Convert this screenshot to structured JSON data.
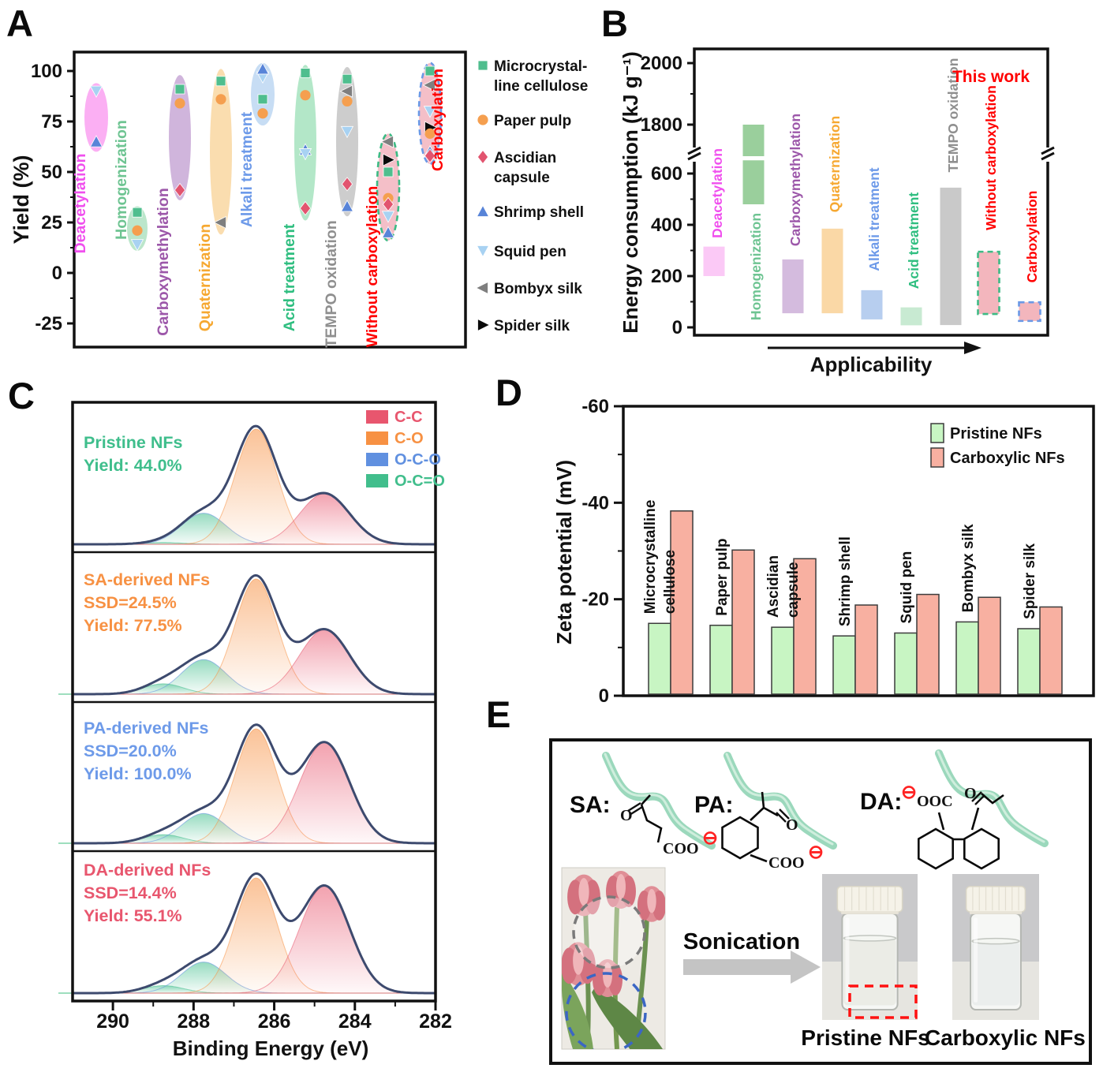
{
  "panels": {
    "A": {
      "letter": "A"
    },
    "B": {
      "letter": "B"
    },
    "C": {
      "letter": "C"
    },
    "D": {
      "letter": "D"
    },
    "E": {
      "letter": "E",
      "structures": [
        {
          "name": "SA",
          "label": "SA:",
          "carbonyl": "O",
          "carboxylate": "COO",
          "charge": "⊖"
        },
        {
          "name": "PA",
          "label": "PA:",
          "carbonyl": "O",
          "carboxylate": "COO",
          "charge": "⊖"
        },
        {
          "name": "DA",
          "label": "DA:",
          "carbonyl": "O",
          "carboxylate": "OOC",
          "charge": "⊖"
        }
      ],
      "sonication_label": "Sonication",
      "vials": [
        {
          "label": "Pristine NFs",
          "cloudy": true,
          "marker": "red-dashed-box"
        },
        {
          "label": "Carboxylic NFs",
          "cloudy": false,
          "marker": null
        }
      ]
    }
  },
  "samples": [
    {
      "name": "Microcrystalline cellulose",
      "legend_lines": [
        "Microcrystal-",
        "line cellulose"
      ],
      "shape": "square",
      "color": "#4FBE8E"
    },
    {
      "name": "Paper pulp",
      "legend_lines": [
        "Paper pulp"
      ],
      "shape": "circle",
      "color": "#F59F4F"
    },
    {
      "name": "Ascidian capsule",
      "legend_lines": [
        "Ascidian",
        "capsule"
      ],
      "shape": "diamond",
      "color": "#E2546F"
    },
    {
      "name": "Shrimp shell",
      "legend_lines": [
        "Shrimp shell"
      ],
      "shape": "triangle-up",
      "color": "#5884D8"
    },
    {
      "name": "Squid pen",
      "legend_lines": [
        "Squid pen"
      ],
      "shape": "triangle-down",
      "color": "#A8D2F2"
    },
    {
      "name": "Bombyx silk",
      "legend_lines": [
        "Bombyx silk"
      ],
      "shape": "triangle-left",
      "color": "#7F7F7F"
    },
    {
      "name": "Spider silk",
      "legend_lines": [
        "Spider silk"
      ],
      "shape": "triangle-right",
      "color": "#0A0A0A"
    }
  ],
  "chart_data": [
    {
      "id": "A",
      "type": "scatter",
      "ylabel": "Yield (%)",
      "ylim": [
        -40,
        110
      ],
      "yticks": [
        100,
        75,
        50,
        25,
        0,
        -25
      ],
      "legend_position": "right",
      "categories": [
        {
          "label": "Deacetylation",
          "text_color": "#F050EE",
          "fill": "#FAA4F1",
          "dash_border": null,
          "range": [
            60,
            94
          ],
          "points": [
            {
              "sample": "Squid pen",
              "value": 90
            },
            {
              "sample": "Shrimp shell",
              "value": 65
            }
          ]
        },
        {
          "label": "Homogenization",
          "text_color": "#6EC492",
          "fill": "#B2E2C4",
          "dash_border": null,
          "range": [
            11,
            33
          ],
          "points": [
            {
              "sample": "Microcrystalline cellulose",
              "value": 30
            },
            {
              "sample": "Paper pulp",
              "value": 21
            },
            {
              "sample": "Squid pen",
              "value": 14
            }
          ]
        },
        {
          "label": "Carboxymethylation",
          "text_color": "#9C57A9",
          "fill": "#C9ABD7",
          "dash_border": null,
          "range": [
            36,
            98
          ],
          "points": [
            {
              "sample": "Microcrystalline cellulose",
              "value": 91
            },
            {
              "sample": "Paper pulp",
              "value": 84
            },
            {
              "sample": "Ascidian capsule",
              "value": 41
            }
          ]
        },
        {
          "label": "Quaternization",
          "text_color": "#F6A831",
          "fill": "#F9D8A4",
          "dash_border": null,
          "range": [
            19,
            101
          ],
          "points": [
            {
              "sample": "Microcrystalline cellulose",
              "value": 95
            },
            {
              "sample": "Paper pulp",
              "value": 86
            },
            {
              "sample": "Bombyx silk",
              "value": 25
            }
          ]
        },
        {
          "label": "Alkali treatment",
          "text_color": "#6D9AE9",
          "fill": "#BFD8F3",
          "dash_border": null,
          "range": [
            73,
            104
          ],
          "points": [
            {
              "sample": "Squid pen",
              "value": 97
            },
            {
              "sample": "Shrimp shell",
              "value": 101
            },
            {
              "sample": "Microcrystalline cellulose",
              "value": 86
            },
            {
              "sample": "Paper pulp",
              "value": 79
            }
          ]
        },
        {
          "label": "Acid treatment",
          "text_color": "#2FBE80",
          "fill": "#A8E4C0",
          "dash_border": null,
          "range": [
            26,
            103
          ],
          "points": [
            {
              "sample": "Microcrystalline cellulose",
              "value": 99
            },
            {
              "sample": "Paper pulp",
              "value": 88
            },
            {
              "sample": "Shrimp shell",
              "value": 61
            },
            {
              "sample": "Squid pen",
              "value": 59
            },
            {
              "sample": "Ascidian capsule",
              "value": 32
            }
          ]
        },
        {
          "label": "TEMPO oxidation",
          "text_color": "#8F8F8F",
          "fill": "#C6C6C6",
          "dash_border": null,
          "range": [
            28,
            102
          ],
          "points": [
            {
              "sample": "Microcrystalline cellulose",
              "value": 96
            },
            {
              "sample": "Bombyx silk",
              "value": 90
            },
            {
              "sample": "Paper pulp",
              "value": 85
            },
            {
              "sample": "Squid pen",
              "value": 70
            },
            {
              "sample": "Ascidian capsule",
              "value": 44
            },
            {
              "sample": "Shrimp shell",
              "value": 33
            }
          ]
        },
        {
          "label": "Without carboxylation",
          "text_color": "#FF0000",
          "fill": "#F3B6C0",
          "dash_border": "#3DBB85",
          "range": [
            16,
            69
          ],
          "points": [
            {
              "sample": "Bombyx silk",
              "value": 65
            },
            {
              "sample": "Spider silk",
              "value": 56
            },
            {
              "sample": "Microcrystalline cellulose",
              "value": 50
            },
            {
              "sample": "Paper pulp",
              "value": 37
            },
            {
              "sample": "Ascidian capsule",
              "value": 34
            },
            {
              "sample": "Squid pen",
              "value": 28
            },
            {
              "sample": "Shrimp shell",
              "value": 20
            }
          ]
        },
        {
          "label": "Carboxylation",
          "text_color": "#FF0000",
          "fill": "#F3B6C0",
          "dash_border": "#6A99E6",
          "range": [
            54,
            104
          ],
          "points": [
            {
              "sample": "Microcrystalline cellulose",
              "value": 100
            },
            {
              "sample": "Bombyx silk",
              "value": 93
            },
            {
              "sample": "Squid pen",
              "value": 80
            },
            {
              "sample": "Spider silk",
              "value": 72
            },
            {
              "sample": "Paper pulp",
              "value": 69
            },
            {
              "sample": "Shrimp shell",
              "value": 60
            },
            {
              "sample": "Ascidian capsule",
              "value": 58
            }
          ]
        }
      ]
    },
    {
      "id": "B",
      "type": "bar",
      "ylabel": "Energy consumption (kJ g⁻¹)",
      "axis_break": {
        "lower_max": 650,
        "upper_min": 1700
      },
      "yticks_lower": [
        0,
        200,
        400,
        600
      ],
      "yticks_upper": [
        1800,
        2000
      ],
      "annotation": {
        "text": "This work",
        "color": "#FF0000"
      },
      "x_arrow_label": "Applicability",
      "bars": [
        {
          "label": "Deacetylation",
          "range": [
            200,
            315
          ],
          "fill": "#FBC9F6",
          "text_color": "#F050EE",
          "dash_border": null
        },
        {
          "label": "Homogenization",
          "range": [
            480,
            1800
          ],
          "fill": "#9ACF9C",
          "text_color": "#6EC492",
          "dash_border": null
        },
        {
          "label": "Carboxymethylation",
          "range": [
            55,
            265
          ],
          "fill": "#D4BBDE",
          "text_color": "#9C57A9",
          "dash_border": null
        },
        {
          "label": "Quaternization",
          "range": [
            55,
            385
          ],
          "fill": "#FAD8A6",
          "text_color": "#F6A831",
          "dash_border": null
        },
        {
          "label": "Alkali treatment",
          "range": [
            31,
            145
          ],
          "fill": "#B7CEEF",
          "text_color": "#6D9AE9",
          "dash_border": null
        },
        {
          "label": "Acid treatment",
          "range": [
            8,
            78
          ],
          "fill": "#C8EAD2",
          "text_color": "#2FBE80",
          "dash_border": null
        },
        {
          "label": "TEMPO oxidation",
          "range": [
            9,
            545
          ],
          "fill": "#C9C9C9",
          "text_color": "#8F8F8F",
          "dash_border": null
        },
        {
          "label": "Without carboxylation",
          "range": [
            52,
            295
          ],
          "fill": "#F3B6BD",
          "text_color": "#FF0000",
          "dash_border": "#3DBB85"
        },
        {
          "label": "Carboxylation",
          "range": [
            25,
            98
          ],
          "fill": "#F3B6BD",
          "text_color": "#FF0000",
          "dash_border": "#6A99E6"
        }
      ]
    },
    {
      "id": "C",
      "type": "area",
      "xlabel": "Binding Energy (eV)",
      "xlim": [
        291,
        282
      ],
      "xticks": [
        290,
        288,
        286,
        284,
        282
      ],
      "components": [
        {
          "key": "O-C=O",
          "color": "#41BE8C",
          "center": 288.75,
          "sigma": 0.5
        },
        {
          "key": "O-C-O",
          "color": "#6090E0",
          "center": 287.75,
          "sigma": 0.55
        },
        {
          "key": "C-O",
          "color": "#F79143",
          "center": 286.45,
          "sigma": 0.52
        },
        {
          "key": "C-C",
          "color": "#E8566E",
          "center": 284.75,
          "sigma": 0.62
        }
      ],
      "legend_order": [
        "C-C",
        "C-O",
        "O-C-O",
        "O-C=O"
      ],
      "envelope_color": "#3D4A6E",
      "spectra": [
        {
          "name": "Pristine NFs",
          "text_color": "#3FBE8C",
          "lines": [
            "Pristine NFs",
            "Yield: 44.0%"
          ],
          "amps": {
            "O-C=O": 0.015,
            "O-C-O": 0.27,
            "C-O": 1.0,
            "C-C": 0.44
          }
        },
        {
          "name": "SA-derived NFs",
          "text_color": "#F79143",
          "lines": [
            "SA-derived NFs",
            "SSD=24.5%",
            "Yield: 77.5%"
          ],
          "amps": {
            "O-C=O": 0.09,
            "O-C-O": 0.3,
            "C-O": 1.0,
            "C-C": 0.56
          }
        },
        {
          "name": "PA-derived NFs",
          "text_color": "#6D9AE9",
          "lines": [
            "PA-derived NFs",
            "SSD=20.0%",
            "Yield: 100.0%"
          ],
          "amps": {
            "O-C=O": 0.075,
            "O-C-O": 0.26,
            "C-O": 1.0,
            "C-C": 0.88
          }
        },
        {
          "name": "DA-derived NFs",
          "text_color": "#E8566E",
          "lines": [
            "DA-derived NFs",
            "SSD=14.4%",
            "Yield: 55.1%"
          ],
          "amps": {
            "O-C=O": 0.065,
            "O-C-O": 0.27,
            "C-O": 1.0,
            "C-C": 0.93
          }
        }
      ]
    },
    {
      "id": "D",
      "type": "bar",
      "ylabel": "Zeta potential (mV)",
      "ylim": [
        0,
        -60
      ],
      "yticks": [
        0,
        -20,
        -40,
        -60
      ],
      "series": [
        {
          "name": "Pristine NFs",
          "color": "#C8F5C3"
        },
        {
          "name": "Carboxylic NFs",
          "color": "#F8B0A1"
        }
      ],
      "categories": [
        "Microcrystalline cellulose",
        "Paper pulp",
        "Ascidian capsule",
        "Shrimp shell",
        "Squid pen",
        "Bombyx silk",
        "Spider silk"
      ],
      "category_lines": [
        [
          "Microcrystalline",
          "cellulose"
        ],
        [
          "Paper pulp"
        ],
        [
          "Ascidian",
          "capsule"
        ],
        [
          "Shrimp shell"
        ],
        [
          "Squid pen"
        ],
        [
          "Bombyx silk"
        ],
        [
          "Spider silk"
        ]
      ],
      "values": [
        [
          -15.0,
          -38.3
        ],
        [
          -14.6,
          -30.2
        ],
        [
          -14.2,
          -28.4
        ],
        [
          -12.4,
          -18.8
        ],
        [
          -13.0,
          -21.0
        ],
        [
          -15.3,
          -20.4
        ],
        [
          -13.9,
          -18.4
        ]
      ]
    }
  ]
}
